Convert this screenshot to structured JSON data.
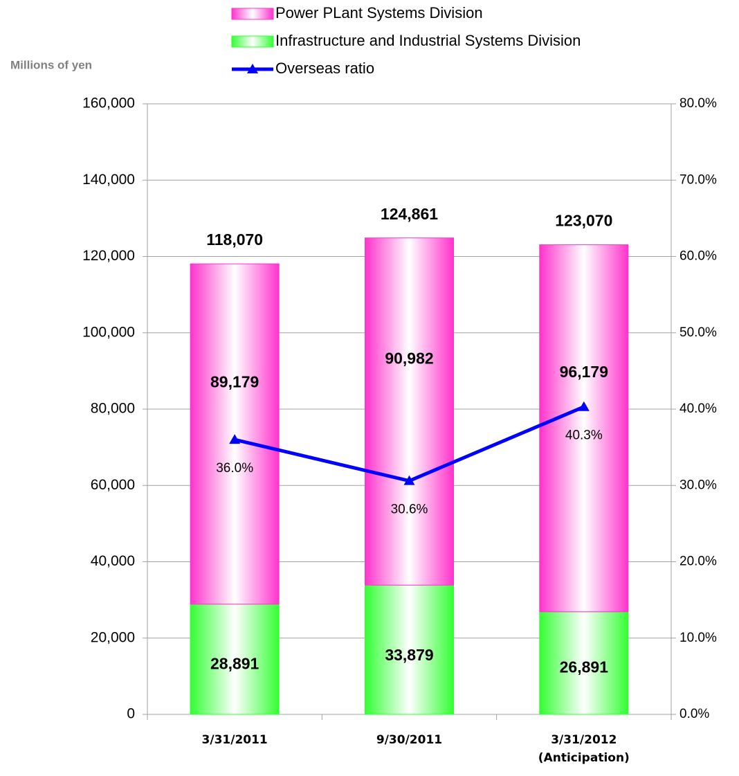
{
  "chart_data": {
    "type": "stacked-bar-line",
    "y_axis_label": "Millions of yen",
    "categories": [
      "3/31/2011",
      "9/30/2011",
      "3/31/2012\n(Anticipation)"
    ],
    "series": [
      {
        "name": "Infrastructure and Industrial Systems Division",
        "color": "#33ff33",
        "values": [
          28891,
          33879,
          26891
        ],
        "value_labels": [
          "28,891",
          "33,879",
          "26,891"
        ]
      },
      {
        "name": "Power PLant Systems Division",
        "color": "#ff33cc",
        "values": [
          89179,
          90982,
          96179
        ],
        "value_labels": [
          "89,179",
          "90,982",
          "96,179"
        ]
      },
      {
        "name": "Overseas ratio",
        "type": "line",
        "axis": "y2",
        "color": "#0000ff",
        "values": [
          36.0,
          30.6,
          40.3
        ],
        "value_labels": [
          "36.0%",
          "30.6%",
          "40.3%"
        ]
      }
    ],
    "totals": [
      118070,
      124861,
      123070
    ],
    "total_labels": [
      "118,070",
      "124,861",
      "123,070"
    ],
    "legend_order": [
      1,
      0,
      2
    ],
    "ylim": [
      0,
      160000
    ],
    "yticks": [
      0,
      {
        "value": 20000,
        "label": "20,000"
      },
      {
        "value": 40000,
        "label": "40,000"
      },
      {
        "value": 60000,
        "label": "60,000"
      },
      {
        "value": 80000,
        "label": "80,000"
      },
      {
        "value": 100000,
        "label": "100,000"
      },
      {
        "value": 120000,
        "label": "120,000"
      },
      {
        "value": 140000,
        "label": "140,000"
      },
      {
        "value": 160000,
        "label": "160,000"
      }
    ],
    "y2lim": [
      0,
      80
    ],
    "y2ticks": [
      {
        "value": 0,
        "label": "0.0%"
      },
      {
        "value": 10,
        "label": "10.0%"
      },
      {
        "value": 20,
        "label": "20.0%"
      },
      {
        "value": 30,
        "label": "30.0%"
      },
      {
        "value": 40,
        "label": "40.0%"
      },
      {
        "value": 50,
        "label": "50.0%"
      },
      {
        "value": 60,
        "label": "60.0%"
      },
      {
        "value": 70,
        "label": "70.0%"
      },
      {
        "value": 80,
        "label": "80.0%"
      }
    ],
    "grid": true
  }
}
